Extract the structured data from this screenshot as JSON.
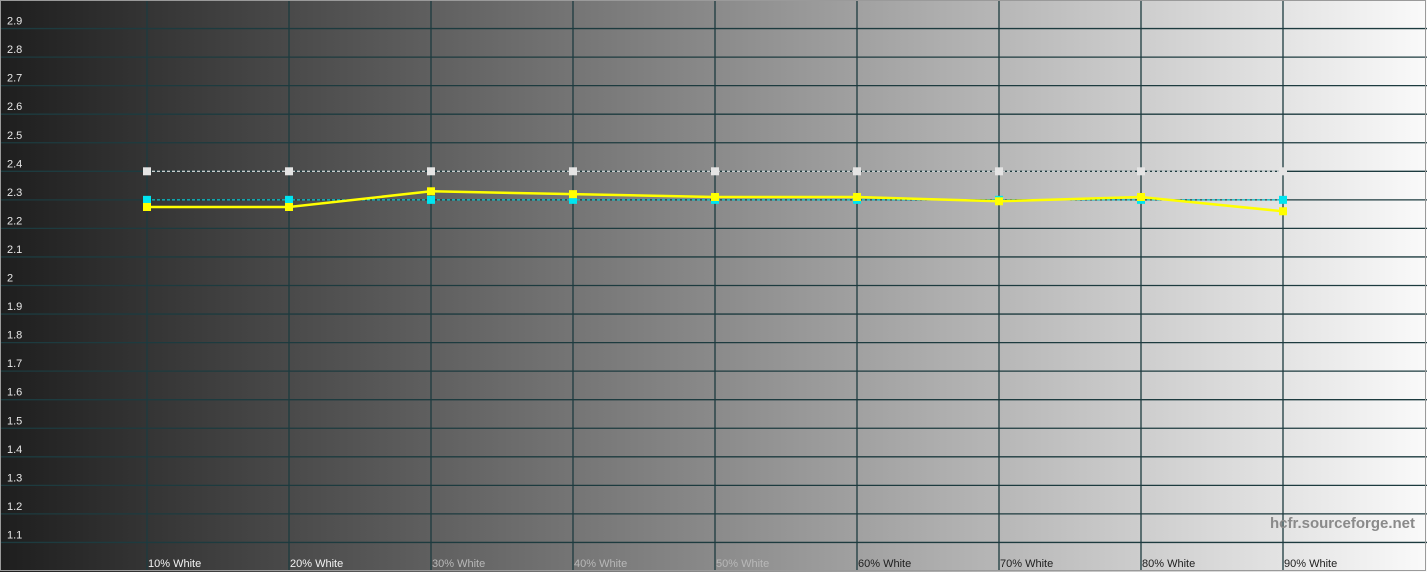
{
  "chart_data": {
    "type": "line",
    "title": "",
    "xlabel": "",
    "ylabel": "",
    "ylim": [
      1.0,
      3.0
    ],
    "yticks": [
      "2.9",
      "2.8",
      "2.7",
      "2.6",
      "2.5",
      "2.4",
      "2.3",
      "2.2",
      "2.1",
      "2",
      "1.9",
      "1.8",
      "1.7",
      "1.6",
      "1.5",
      "1.4",
      "1.3",
      "1.2",
      "1.1"
    ],
    "categories": [
      "10% White",
      "20% White",
      "30% White",
      "40% White",
      "50% White",
      "60% White",
      "70% White",
      "80% White",
      "90% White"
    ],
    "x": [
      10,
      20,
      30,
      40,
      50,
      60,
      70,
      80,
      90
    ],
    "grid": true,
    "background": "grayscale gradient dark to white",
    "series": [
      {
        "color": "#ffffff",
        "style": "dashed",
        "values": [
          2.4,
          2.4,
          2.4,
          2.4,
          2.4,
          2.4,
          2.4,
          2.4,
          2.4
        ]
      },
      {
        "color": "#00e5f0",
        "style": "dashed",
        "values": [
          2.3,
          2.3,
          2.3,
          2.3,
          2.3,
          2.3,
          2.3,
          2.3,
          2.3
        ]
      },
      {
        "color": "#ffff00",
        "style": "solid",
        "values": [
          2.275,
          2.275,
          2.33,
          2.32,
          2.31,
          2.31,
          2.295,
          2.31,
          2.26
        ]
      }
    ]
  },
  "watermark": "hcfr.sourceforge.net"
}
